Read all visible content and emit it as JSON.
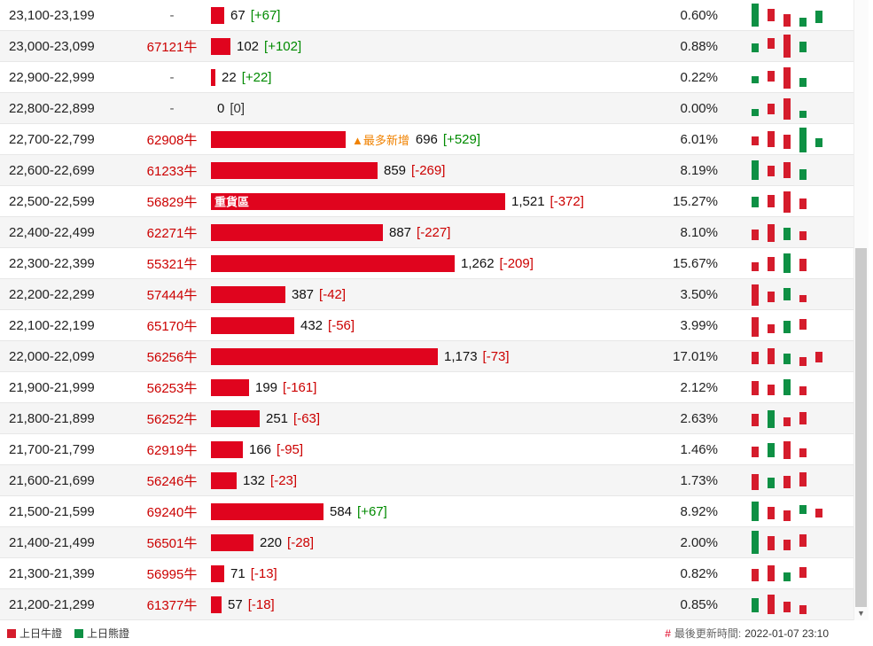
{
  "colors": {
    "bar_red": "#e0041e",
    "spark_bull_red": "#d51c2c",
    "spark_bear_green": "#0e9044",
    "code_red": "#cc0000",
    "change_pos_green": "#008a00",
    "change_neg_red": "#cc0000",
    "most_new_orange": "#f08200"
  },
  "table": {
    "rows": [
      {
        "range": "23,100-23,199",
        "code": "-",
        "value": 67,
        "value_label": "67",
        "change": "[+67]",
        "change_type": "pos",
        "pct": "0.60%",
        "spark": [
          [
            0,
            "g",
            4,
            26
          ],
          [
            1,
            "r",
            10,
            14
          ],
          [
            2,
            "r",
            16,
            14
          ],
          [
            3,
            "g",
            20,
            10
          ],
          [
            4,
            "g",
            12,
            14
          ]
        ]
      },
      {
        "range": "23,000-23,099",
        "code": "67121牛",
        "value": 102,
        "value_label": "102",
        "change": "[+102]",
        "change_type": "pos",
        "pct": "0.88%",
        "spark": [
          [
            0,
            "g",
            14,
            10
          ],
          [
            1,
            "r",
            8,
            12
          ],
          [
            2,
            "r",
            4,
            26
          ],
          [
            3,
            "g",
            12,
            12
          ]
        ]
      },
      {
        "range": "22,900-22,999",
        "code": "-",
        "value": 22,
        "value_label": "22",
        "change": "[+22]",
        "change_type": "pos",
        "pct": "0.22%",
        "spark": [
          [
            0,
            "g",
            16,
            8
          ],
          [
            1,
            "r",
            10,
            12
          ],
          [
            2,
            "r",
            6,
            24
          ],
          [
            3,
            "g",
            18,
            10
          ]
        ]
      },
      {
        "range": "22,800-22,899",
        "code": "-",
        "value": 0,
        "value_label": "0",
        "change": "[0]",
        "change_type": "zero",
        "pct": "0.00%",
        "spark": [
          [
            0,
            "g",
            18,
            8
          ],
          [
            1,
            "r",
            12,
            12
          ],
          [
            2,
            "r",
            6,
            24
          ],
          [
            3,
            "g",
            20,
            8
          ]
        ]
      },
      {
        "range": "22,700-22,799",
        "code": "62908牛",
        "value": 696,
        "value_label": "696",
        "change": "[+529]",
        "change_type": "pos",
        "pct": "6.01%",
        "most_new_label": "▲最多新增",
        "spark": [
          [
            0,
            "r",
            14,
            10
          ],
          [
            1,
            "r",
            8,
            18
          ],
          [
            2,
            "r",
            12,
            16
          ],
          [
            3,
            "g",
            4,
            28
          ],
          [
            4,
            "g",
            16,
            10
          ]
        ]
      },
      {
        "range": "22,600-22,699",
        "code": "61233牛",
        "value": 859,
        "value_label": "859",
        "change": "[-269]",
        "change_type": "neg",
        "pct": "8.19%",
        "spark": [
          [
            0,
            "g",
            6,
            22
          ],
          [
            1,
            "r",
            12,
            12
          ],
          [
            2,
            "r",
            8,
            18
          ],
          [
            3,
            "g",
            16,
            12
          ]
        ]
      },
      {
        "range": "22,500-22,599",
        "code": "56829牛",
        "value": 1521,
        "value_label": "1,521",
        "change": "[-372]",
        "change_type": "neg",
        "pct": "15.27%",
        "heavy_label": "重貨區",
        "spark": [
          [
            0,
            "g",
            12,
            12
          ],
          [
            1,
            "r",
            10,
            14
          ],
          [
            2,
            "r",
            6,
            24
          ],
          [
            3,
            "r",
            14,
            12
          ]
        ]
      },
      {
        "range": "22,400-22,499",
        "code": "62271牛",
        "value": 887,
        "value_label": "887",
        "change": "[-227]",
        "change_type": "neg",
        "pct": "8.10%",
        "spark": [
          [
            0,
            "r",
            14,
            12
          ],
          [
            1,
            "r",
            8,
            20
          ],
          [
            2,
            "g",
            12,
            14
          ],
          [
            3,
            "r",
            16,
            10
          ]
        ]
      },
      {
        "range": "22,300-22,399",
        "code": "55321牛",
        "value": 1262,
        "value_label": "1,262",
        "change": "[-209]",
        "change_type": "neg",
        "pct": "15.67%",
        "spark": [
          [
            0,
            "r",
            16,
            10
          ],
          [
            1,
            "r",
            10,
            16
          ],
          [
            2,
            "g",
            6,
            22
          ],
          [
            3,
            "r",
            12,
            14
          ]
        ]
      },
      {
        "range": "22,200-22,299",
        "code": "57444牛",
        "value": 387,
        "value_label": "387",
        "change": "[-42]",
        "change_type": "neg",
        "pct": "3.50%",
        "spark": [
          [
            0,
            "r",
            6,
            24
          ],
          [
            1,
            "r",
            14,
            12
          ],
          [
            2,
            "g",
            10,
            14
          ],
          [
            3,
            "r",
            18,
            8
          ]
        ]
      },
      {
        "range": "22,100-22,199",
        "code": "65170牛",
        "value": 432,
        "value_label": "432",
        "change": "[-56]",
        "change_type": "neg",
        "pct": "3.99%",
        "spark": [
          [
            0,
            "r",
            8,
            22
          ],
          [
            1,
            "r",
            16,
            10
          ],
          [
            2,
            "g",
            12,
            14
          ],
          [
            3,
            "r",
            10,
            12
          ]
        ]
      },
      {
        "range": "22,000-22,099",
        "code": "56256牛",
        "value": 1173,
        "value_label": "1,173",
        "change": "[-73]",
        "change_type": "neg",
        "pct": "17.01%",
        "spark": [
          [
            0,
            "r",
            12,
            14
          ],
          [
            1,
            "r",
            8,
            18
          ],
          [
            2,
            "g",
            14,
            12
          ],
          [
            3,
            "r",
            18,
            10
          ],
          [
            4,
            "r",
            12,
            12
          ]
        ]
      },
      {
        "range": "21,900-21,999",
        "code": "56253牛",
        "value": 199,
        "value_label": "199",
        "change": "[-161]",
        "change_type": "neg",
        "pct": "2.12%",
        "spark": [
          [
            0,
            "r",
            10,
            16
          ],
          [
            1,
            "r",
            14,
            12
          ],
          [
            2,
            "g",
            8,
            18
          ],
          [
            3,
            "r",
            16,
            10
          ]
        ]
      },
      {
        "range": "21,800-21,899",
        "code": "56252牛",
        "value": 251,
        "value_label": "251",
        "change": "[-63]",
        "change_type": "neg",
        "pct": "2.63%",
        "spark": [
          [
            0,
            "r",
            12,
            14
          ],
          [
            1,
            "g",
            8,
            20
          ],
          [
            2,
            "r",
            16,
            10
          ],
          [
            3,
            "r",
            10,
            14
          ]
        ]
      },
      {
        "range": "21,700-21,799",
        "code": "62919牛",
        "value": 166,
        "value_label": "166",
        "change": "[-95]",
        "change_type": "neg",
        "pct": "1.46%",
        "spark": [
          [
            0,
            "r",
            14,
            12
          ],
          [
            1,
            "g",
            10,
            16
          ],
          [
            2,
            "r",
            8,
            20
          ],
          [
            3,
            "r",
            16,
            10
          ]
        ]
      },
      {
        "range": "21,600-21,699",
        "code": "56246牛",
        "value": 132,
        "value_label": "132",
        "change": "[-23]",
        "change_type": "neg",
        "pct": "1.73%",
        "spark": [
          [
            0,
            "r",
            10,
            18
          ],
          [
            1,
            "g",
            14,
            12
          ],
          [
            2,
            "r",
            12,
            14
          ],
          [
            3,
            "r",
            8,
            16
          ]
        ]
      },
      {
        "range": "21,500-21,599",
        "code": "69240牛",
        "value": 584,
        "value_label": "584",
        "change": "[+67]",
        "change_type": "pos",
        "pct": "8.92%",
        "spark": [
          [
            0,
            "g",
            6,
            22
          ],
          [
            1,
            "r",
            12,
            14
          ],
          [
            2,
            "r",
            16,
            12
          ],
          [
            3,
            "g",
            10,
            10
          ],
          [
            4,
            "r",
            14,
            10
          ]
        ]
      },
      {
        "range": "21,400-21,499",
        "code": "56501牛",
        "value": 220,
        "value_label": "220",
        "change": "[-28]",
        "change_type": "neg",
        "pct": "2.00%",
        "spark": [
          [
            0,
            "g",
            4,
            26
          ],
          [
            1,
            "r",
            10,
            16
          ],
          [
            2,
            "r",
            14,
            12
          ],
          [
            3,
            "r",
            8,
            14
          ]
        ]
      },
      {
        "range": "21,300-21,399",
        "code": "56995牛",
        "value": 71,
        "value_label": "71",
        "change": "[-13]",
        "change_type": "neg",
        "pct": "0.82%",
        "spark": [
          [
            0,
            "r",
            12,
            14
          ],
          [
            1,
            "r",
            8,
            18
          ],
          [
            2,
            "g",
            16,
            10
          ],
          [
            3,
            "r",
            10,
            12
          ]
        ]
      },
      {
        "range": "21,200-21,299",
        "code": "61377牛",
        "value": 57,
        "value_label": "57",
        "change": "[-18]",
        "change_type": "neg",
        "pct": "0.85%",
        "spark": [
          [
            0,
            "g",
            10,
            16
          ],
          [
            1,
            "r",
            6,
            22
          ],
          [
            2,
            "r",
            14,
            12
          ],
          [
            3,
            "r",
            18,
            10
          ]
        ]
      }
    ]
  },
  "legend": {
    "bull_label": "上日牛證",
    "bear_label": "上日熊證"
  },
  "footer": {
    "hash": "#",
    "updated_label": "最後更新時間:",
    "updated_value": "2022-01-07 23:10"
  }
}
